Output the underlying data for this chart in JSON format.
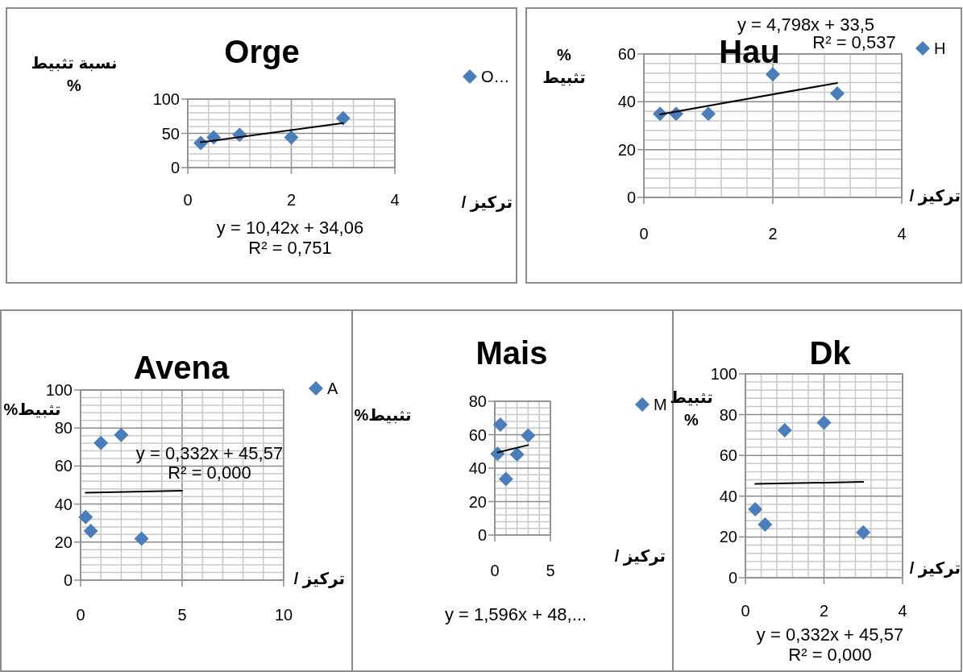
{
  "chart_data": [
    {
      "type": "scatter",
      "title": "Orge",
      "xlabel": "تركيز /",
      "ylabel": "نسبة تثبيط\n%",
      "xlim": [
        0,
        4
      ],
      "ylim": [
        0,
        100
      ],
      "xticks": [
        0,
        {
          "value": 0.4,
          "label": null
        },
        {
          "value": 0.8,
          "label": null
        },
        {
          "value": 1.2,
          "label": null
        },
        {
          "value": 1.6,
          "label": null
        },
        2,
        {
          "value": 2.4,
          "label": null
        },
        {
          "value": 2.8,
          "label": null
        },
        {
          "value": 3.2,
          "label": null
        },
        {
          "value": 3.6,
          "label": null
        },
        4
      ],
      "yticks": [
        0,
        {
          "value": 10,
          "label": null
        },
        {
          "value": 20,
          "label": null
        },
        {
          "value": 30,
          "label": null
        },
        {
          "value": 40,
          "label": null
        },
        50,
        {
          "value": 60,
          "label": null
        },
        {
          "value": 70,
          "label": null
        },
        {
          "value": 80,
          "label": null
        },
        {
          "value": 90,
          "label": null
        },
        100
      ],
      "grid": true,
      "legend": "right",
      "annotations": [
        "y = 10,42x + 34,06",
        "R² = 0,751"
      ],
      "series": [
        {
          "name": "O…",
          "color": "#4a7ebb",
          "marker": "diamond",
          "x": [
            0.25,
            0.5,
            1,
            2,
            3
          ],
          "values": [
            36,
            44,
            48,
            44,
            72
          ]
        },
        {
          "type": "line",
          "color": "#000000",
          "marker": "none",
          "x": [
            0.25,
            3
          ],
          "values": [
            37,
            65
          ]
        }
      ]
    },
    {
      "type": "scatter",
      "title": "Hau",
      "xlabel": "تركيز /",
      "ylabel": "%\nتثبيط",
      "xlim": [
        0,
        4
      ],
      "ylim": [
        0,
        60
      ],
      "xticks": [
        0,
        {
          "value": 0.4,
          "label": null
        },
        {
          "value": 0.8,
          "label": null
        },
        {
          "value": 1.2,
          "label": null
        },
        {
          "value": 1.6,
          "label": null
        },
        2,
        {
          "value": 2.4,
          "label": null
        },
        {
          "value": 2.8,
          "label": null
        },
        {
          "value": 3.2,
          "label": null
        },
        {
          "value": 3.6,
          "label": null
        },
        4
      ],
      "yticks": [
        0,
        {
          "value": 4,
          "label": null
        },
        {
          "value": 8,
          "label": null
        },
        {
          "value": 12,
          "label": null
        },
        {
          "value": 16,
          "label": null
        },
        20,
        {
          "value": 24,
          "label": null
        },
        {
          "value": 28,
          "label": null
        },
        {
          "value": 32,
          "label": null
        },
        {
          "value": 36,
          "label": null
        },
        40,
        {
          "value": 44,
          "label": null
        },
        {
          "value": 48,
          "label": null
        },
        {
          "value": 52,
          "label": null
        },
        {
          "value": 56,
          "label": null
        },
        60
      ],
      "grid": true,
      "legend": "right",
      "annotations": [
        "y = 4,798x + 33,5",
        "R² = 0,537"
      ],
      "series": [
        {
          "name": "H",
          "color": "#4a7ebb",
          "marker": "diamond",
          "x": [
            0.25,
            0.5,
            1,
            2,
            3
          ],
          "values": [
            35,
            35,
            35,
            51.5,
            43.5
          ]
        },
        {
          "type": "line",
          "color": "#000000",
          "marker": "none",
          "x": [
            0.25,
            3
          ],
          "values": [
            34.7,
            47.9
          ]
        }
      ]
    },
    {
      "type": "scatter",
      "title": "Avena",
      "xlabel": "تركيز /",
      "ylabel": "تثبيط%",
      "xlim": [
        0,
        10
      ],
      "ylim": [
        0,
        100
      ],
      "xticks": [
        0,
        {
          "value": 1,
          "label": null
        },
        {
          "value": 2,
          "label": null
        },
        {
          "value": 3,
          "label": null
        },
        {
          "value": 4,
          "label": null
        },
        5,
        {
          "value": 6,
          "label": null
        },
        {
          "value": 7,
          "label": null
        },
        {
          "value": 8,
          "label": null
        },
        {
          "value": 9,
          "label": null
        },
        10
      ],
      "yticks": [
        0,
        {
          "value": 4,
          "label": null
        },
        {
          "value": 8,
          "label": null
        },
        {
          "value": 12,
          "label": null
        },
        {
          "value": 16,
          "label": null
        },
        20,
        {
          "value": 24,
          "label": null
        },
        {
          "value": 28,
          "label": null
        },
        {
          "value": 32,
          "label": null
        },
        {
          "value": 36,
          "label": null
        },
        40,
        {
          "value": 44,
          "label": null
        },
        {
          "value": 48,
          "label": null
        },
        {
          "value": 52,
          "label": null
        },
        {
          "value": 56,
          "label": null
        },
        60,
        {
          "value": 64,
          "label": null
        },
        {
          "value": 68,
          "label": null
        },
        {
          "value": 72,
          "label": null
        },
        {
          "value": 76,
          "label": null
        },
        80,
        {
          "value": 84,
          "label": null
        },
        {
          "value": 88,
          "label": null
        },
        {
          "value": 92,
          "label": null
        },
        {
          "value": 96,
          "label": null
        },
        100
      ],
      "grid": true,
      "legend": "right",
      "annotations": [
        "y = 0,332x + 45,57",
        "R² = 0,000"
      ],
      "series": [
        {
          "name": "A",
          "color": "#4a7ebb",
          "marker": "diamond",
          "x": [
            0.25,
            0.5,
            1,
            2,
            3
          ],
          "values": [
            33.2,
            25.9,
            72.1,
            76.4,
            21.8
          ]
        },
        {
          "type": "line",
          "color": "#000000",
          "marker": "none",
          "x": [
            0.25,
            5
          ],
          "values": [
            46,
            47
          ]
        }
      ]
    },
    {
      "type": "scatter",
      "title": "Mais",
      "xlabel": "تركيز /",
      "ylabel": "تثبيط%",
      "xlim": [
        0,
        5
      ],
      "ylim": [
        0,
        80
      ],
      "xticks": [
        0,
        {
          "value": 1,
          "label": null
        },
        {
          "value": 2,
          "label": null
        },
        {
          "value": 3,
          "label": null
        },
        {
          "value": 4,
          "label": null
        },
        5
      ],
      "yticks": [
        0,
        {
          "value": 4,
          "label": null
        },
        {
          "value": 8,
          "label": null
        },
        {
          "value": 12,
          "label": null
        },
        {
          "value": 16,
          "label": null
        },
        20,
        {
          "value": 24,
          "label": null
        },
        {
          "value": 28,
          "label": null
        },
        {
          "value": 32,
          "label": null
        },
        {
          "value": 36,
          "label": null
        },
        40,
        {
          "value": 44,
          "label": null
        },
        {
          "value": 48,
          "label": null
        },
        {
          "value": 52,
          "label": null
        },
        {
          "value": 56,
          "label": null
        },
        60,
        {
          "value": 64,
          "label": null
        },
        {
          "value": 68,
          "label": null
        },
        {
          "value": 72,
          "label": null
        },
        {
          "value": 76,
          "label": null
        },
        80
      ],
      "grid": true,
      "legend": "right",
      "annotations": [
        "y = 1,596x + 48,..."
      ],
      "series": [
        {
          "name": "M",
          "color": "#4a7ebb",
          "marker": "diamond",
          "x": [
            0.25,
            0.5,
            1,
            2,
            3
          ],
          "values": [
            48.5,
            66,
            33.5,
            48.2,
            59.5
          ]
        },
        {
          "type": "line",
          "color": "#000000",
          "marker": "none",
          "x": [
            0.25,
            3
          ],
          "values": [
            49.4,
            53.8
          ]
        }
      ]
    },
    {
      "type": "scatter",
      "title": "Dk",
      "xlabel": "تركيز /",
      "ylabel": "تثبيط\n%",
      "xlim": [
        0,
        4
      ],
      "ylim": [
        0,
        100
      ],
      "xticks": [
        0,
        {
          "value": 0.4,
          "label": null
        },
        {
          "value": 0.8,
          "label": null
        },
        {
          "value": 1.2,
          "label": null
        },
        {
          "value": 1.6,
          "label": null
        },
        2,
        {
          "value": 2.4,
          "label": null
        },
        {
          "value": 2.8,
          "label": null
        },
        {
          "value": 3.2,
          "label": null
        },
        {
          "value": 3.6,
          "label": null
        },
        4
      ],
      "yticks": [
        0,
        {
          "value": 4,
          "label": null
        },
        {
          "value": 8,
          "label": null
        },
        {
          "value": 12,
          "label": null
        },
        {
          "value": 16,
          "label": null
        },
        20,
        {
          "value": 24,
          "label": null
        },
        {
          "value": 28,
          "label": null
        },
        {
          "value": 32,
          "label": null
        },
        {
          "value": 36,
          "label": null
        },
        40,
        {
          "value": 44,
          "label": null
        },
        {
          "value": 48,
          "label": null
        },
        {
          "value": 52,
          "label": null
        },
        {
          "value": 56,
          "label": null
        },
        60,
        {
          "value": 64,
          "label": null
        },
        {
          "value": 68,
          "label": null
        },
        {
          "value": 72,
          "label": null
        },
        {
          "value": 76,
          "label": null
        },
        80,
        {
          "value": 84,
          "label": null
        },
        {
          "value": 88,
          "label": null
        },
        {
          "value": 92,
          "label": null
        },
        {
          "value": 96,
          "label": null
        },
        100
      ],
      "grid": true,
      "annotations": [
        "y = 0,332x + 45,57",
        "R² = 0,000"
      ],
      "series": [
        {
          "color": "#4a7ebb",
          "marker": "diamond",
          "x": [
            0.25,
            0.5,
            1,
            2,
            3
          ],
          "values": [
            33.6,
            26.1,
            72.3,
            76.1,
            22.2
          ]
        },
        {
          "type": "line",
          "color": "#000000",
          "marker": "none",
          "x": [
            0.25,
            3
          ],
          "values": [
            46,
            47
          ]
        }
      ]
    }
  ]
}
